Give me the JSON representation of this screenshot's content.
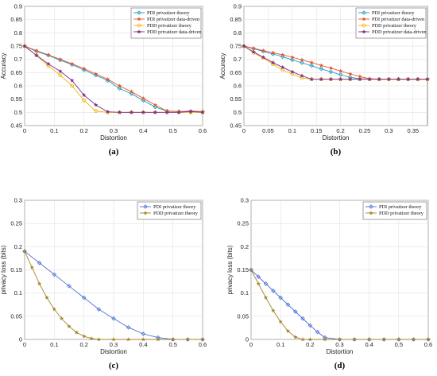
{
  "chart_data": [
    {
      "panel_label": "(a)",
      "type": "line",
      "xlabel": "Distortion",
      "ylabel": "Accuracy",
      "xlim": [
        0,
        0.6
      ],
      "ylim": [
        0.45,
        0.9
      ],
      "xticks": [
        "0",
        "0.1",
        "0.2",
        "0.3",
        "0.4",
        "0.5",
        "0.6"
      ],
      "yticks": [
        "0.45",
        "0.5",
        "0.55",
        "0.6",
        "0.65",
        "0.7",
        "0.75",
        "0.8",
        "0.85",
        "0.9"
      ],
      "grid": true,
      "legend_position": "top-right",
      "series": [
        {
          "name": "PDI privatizer theory",
          "color": "#1f9bc4",
          "marker": "diamond",
          "x": [
            0,
            0.04,
            0.08,
            0.12,
            0.16,
            0.2,
            0.24,
            0.28,
            0.32,
            0.36,
            0.4,
            0.44,
            0.48,
            0.52,
            0.56,
            0.6
          ],
          "y": [
            0.75,
            0.73,
            0.715,
            0.697,
            0.68,
            0.66,
            0.64,
            0.62,
            0.59,
            0.57,
            0.545,
            0.52,
            0.505,
            0.503,
            0.502,
            0.502
          ]
        },
        {
          "name": "PDI privatizer data-driven",
          "color": "#e4572e",
          "marker": "star",
          "x": [
            0,
            0.04,
            0.08,
            0.12,
            0.16,
            0.2,
            0.24,
            0.28,
            0.32,
            0.36,
            0.4,
            0.44,
            0.48,
            0.52,
            0.56,
            0.6
          ],
          "y": [
            0.75,
            0.733,
            0.717,
            0.7,
            0.683,
            0.665,
            0.645,
            0.625,
            0.6,
            0.578,
            0.553,
            0.528,
            0.505,
            0.503,
            0.505,
            0.503
          ]
        },
        {
          "name": "PDD privatizer theory",
          "color": "#f0b400",
          "marker": "circle",
          "x": [
            0,
            0.04,
            0.08,
            0.12,
            0.16,
            0.2,
            0.24,
            0.28,
            0.32,
            0.36,
            0.4,
            0.44,
            0.48,
            0.52,
            0.56,
            0.6
          ],
          "y": [
            0.75,
            0.715,
            0.675,
            0.64,
            0.6,
            0.545,
            0.505,
            0.5,
            0.5,
            0.5,
            0.5,
            0.5,
            0.5,
            0.5,
            0.5,
            0.5
          ]
        },
        {
          "name": "PDD privatizer data-driven",
          "color": "#7b2d8e",
          "marker": "star",
          "x": [
            0,
            0.04,
            0.08,
            0.12,
            0.16,
            0.2,
            0.24,
            0.28,
            0.32,
            0.36,
            0.4,
            0.44,
            0.48,
            0.52,
            0.56,
            0.6
          ],
          "y": [
            0.75,
            0.715,
            0.683,
            0.655,
            0.62,
            0.565,
            0.528,
            0.502,
            0.5,
            0.5,
            0.5,
            0.5,
            0.5,
            0.5,
            0.503,
            0.5
          ]
        }
      ]
    },
    {
      "panel_label": "(b)",
      "type": "line",
      "xlabel": "Distortion",
      "ylabel": "Accuracy",
      "xlim": [
        0,
        0.38
      ],
      "ylim": [
        0.45,
        0.9
      ],
      "xticks": [
        "0",
        "0.05",
        "0.1",
        "0.15",
        "0.2",
        "0.25",
        "0.3",
        "0.35"
      ],
      "yticks": [
        "0.45",
        "0.5",
        "0.55",
        "0.6",
        "0.65",
        "0.7",
        "0.75",
        "0.8",
        "0.85",
        "0.9"
      ],
      "grid": true,
      "legend_position": "top-right",
      "series": [
        {
          "name": "PDI privatizer theory",
          "color": "#1f9bc4",
          "marker": "diamond",
          "x": [
            0,
            0.02,
            0.04,
            0.06,
            0.08,
            0.1,
            0.12,
            0.14,
            0.16,
            0.18,
            0.2,
            0.22,
            0.24,
            0.26,
            0.28,
            0.3,
            0.32,
            0.34,
            0.36,
            0.38
          ],
          "y": [
            0.75,
            0.74,
            0.73,
            0.72,
            0.71,
            0.698,
            0.687,
            0.676,
            0.664,
            0.653,
            0.642,
            0.632,
            0.627,
            0.625,
            0.625,
            0.625,
            0.625,
            0.625,
            0.625,
            0.625
          ]
        },
        {
          "name": "PDI privatizer data-driven",
          "color": "#e4572e",
          "marker": "star",
          "x": [
            0,
            0.02,
            0.04,
            0.06,
            0.08,
            0.1,
            0.12,
            0.14,
            0.16,
            0.18,
            0.2,
            0.22,
            0.24,
            0.26,
            0.28,
            0.3,
            0.32,
            0.34,
            0.36,
            0.38
          ],
          "y": [
            0.75,
            0.742,
            0.733,
            0.725,
            0.717,
            0.708,
            0.698,
            0.688,
            0.677,
            0.667,
            0.656,
            0.645,
            0.635,
            0.627,
            0.625,
            0.625,
            0.625,
            0.625,
            0.625,
            0.625
          ]
        },
        {
          "name": "PDD privatizer theory",
          "color": "#f0b400",
          "marker": "circle",
          "x": [
            0,
            0.02,
            0.04,
            0.06,
            0.08,
            0.1,
            0.12,
            0.14,
            0.16,
            0.18,
            0.2,
            0.22,
            0.24,
            0.26,
            0.28,
            0.3,
            0.32,
            0.34,
            0.36,
            0.38
          ],
          "y": [
            0.75,
            0.725,
            0.705,
            0.682,
            0.66,
            0.645,
            0.63,
            0.625,
            0.625,
            0.625,
            0.625,
            0.625,
            0.625,
            0.625,
            0.625,
            0.625,
            0.625,
            0.625,
            0.625,
            0.625
          ]
        },
        {
          "name": "PDD privatizer data-driven",
          "color": "#7b2d8e",
          "marker": "star",
          "x": [
            0,
            0.02,
            0.04,
            0.06,
            0.08,
            0.1,
            0.12,
            0.14,
            0.16,
            0.18,
            0.2,
            0.22,
            0.24,
            0.26,
            0.28,
            0.3,
            0.32,
            0.34,
            0.36,
            0.38
          ],
          "y": [
            0.75,
            0.728,
            0.708,
            0.688,
            0.67,
            0.653,
            0.638,
            0.625,
            0.625,
            0.625,
            0.625,
            0.625,
            0.625,
            0.625,
            0.625,
            0.625,
            0.625,
            0.625,
            0.625,
            0.625
          ]
        }
      ]
    },
    {
      "panel_label": "(c)",
      "type": "line",
      "xlabel": "Distortion",
      "ylabel": "privacy loss (bits)",
      "xlim": [
        0,
        0.6
      ],
      "ylim": [
        0,
        0.3
      ],
      "xticks": [
        "0",
        "0.1",
        "0.2",
        "0.3",
        "0.4",
        "0.5",
        "0.6"
      ],
      "yticks": [
        "0",
        "0.05",
        "0.1",
        "0.15",
        "0.2",
        "0.25",
        "0.3"
      ],
      "grid": true,
      "legend_position": "top-right",
      "series": [
        {
          "name": "PDI privatizer theory",
          "color": "#4a6fd6",
          "marker": "diamond",
          "x": [
            0,
            0.05,
            0.1,
            0.15,
            0.2,
            0.25,
            0.3,
            0.35,
            0.4,
            0.45,
            0.5,
            0.55,
            0.6
          ],
          "y": [
            0.19,
            0.165,
            0.14,
            0.115,
            0.09,
            0.065,
            0.045,
            0.026,
            0.012,
            0.004,
            0.0,
            0.0,
            0.0
          ]
        },
        {
          "name": "PDD privatizer theory",
          "color": "#a8842c",
          "marker": "star",
          "x": [
            0,
            0.025,
            0.05,
            0.075,
            0.1,
            0.125,
            0.15,
            0.175,
            0.2,
            0.225,
            0.25,
            0.3,
            0.35,
            0.4,
            0.45,
            0.5,
            0.55,
            0.6
          ],
          "y": [
            0.19,
            0.155,
            0.12,
            0.09,
            0.065,
            0.045,
            0.028,
            0.015,
            0.007,
            0.002,
            0.0,
            0.0,
            0.0,
            0.0,
            0.0,
            0.0,
            0.0,
            0.0
          ]
        }
      ]
    },
    {
      "panel_label": "(d)",
      "type": "line",
      "xlabel": "Distortion",
      "ylabel": "privacy loss (bits)",
      "xlim": [
        0,
        0.6
      ],
      "ylim": [
        0,
        0.3
      ],
      "xticks": [
        "0",
        "0.1",
        "0.2",
        "0.3",
        "0.4",
        "0.5",
        "0.6"
      ],
      "yticks": [
        "0",
        "0.05",
        "0.1",
        "0.15",
        "0.2",
        "0.25",
        "0.3"
      ],
      "grid": true,
      "legend_position": "top-right",
      "series": [
        {
          "name": "PDI privatizer theory",
          "color": "#4a6fd6",
          "marker": "diamond",
          "x": [
            0,
            0.025,
            0.05,
            0.075,
            0.1,
            0.125,
            0.15,
            0.175,
            0.2,
            0.225,
            0.25,
            0.3,
            0.35,
            0.4,
            0.45,
            0.5,
            0.55,
            0.6
          ],
          "y": [
            0.15,
            0.135,
            0.12,
            0.105,
            0.09,
            0.075,
            0.06,
            0.045,
            0.03,
            0.016,
            0.004,
            0.0,
            0.0,
            0.0,
            0.0,
            0.0,
            0.0,
            0.0
          ]
        },
        {
          "name": "PDD privatizer theory",
          "color": "#a8842c",
          "marker": "star",
          "x": [
            0,
            0.025,
            0.05,
            0.075,
            0.1,
            0.125,
            0.15,
            0.175,
            0.2,
            0.25,
            0.3,
            0.35,
            0.4,
            0.45,
            0.5,
            0.55,
            0.6
          ],
          "y": [
            0.15,
            0.12,
            0.09,
            0.062,
            0.038,
            0.018,
            0.005,
            0.0,
            0.0,
            0.0,
            0.0,
            0.0,
            0.0,
            0.0,
            0.0,
            0.0,
            0.0
          ]
        }
      ]
    }
  ]
}
